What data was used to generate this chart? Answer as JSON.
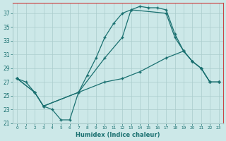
{
  "xlabel": "Humidex (Indice chaleur)",
  "xlim": [
    -0.5,
    23.5
  ],
  "ylim": [
    21,
    38.5
  ],
  "yticks": [
    21,
    23,
    25,
    27,
    29,
    31,
    33,
    35,
    37
  ],
  "xticks": [
    0,
    1,
    2,
    3,
    4,
    5,
    6,
    7,
    8,
    9,
    10,
    11,
    12,
    13,
    14,
    15,
    16,
    17,
    18,
    19,
    20,
    21,
    22,
    23
  ],
  "bg_color": "#cce8e8",
  "grid_color": "#aacccc",
  "line_color": "#1a7070",
  "curve1_x": [
    0,
    1,
    2,
    3,
    4,
    5,
    6,
    7,
    8,
    9,
    10,
    11,
    12,
    13,
    14,
    15,
    16,
    17,
    18,
    19,
    20,
    21,
    22,
    23
  ],
  "curve1_y": [
    27.5,
    27.0,
    25.5,
    23.5,
    23.0,
    21.5,
    21.5,
    25.5,
    28.0,
    30.5,
    33.5,
    35.5,
    37.0,
    37.5,
    38.0,
    37.8,
    37.8,
    37.5,
    34.0,
    31.5,
    30.0,
    29.0,
    27.0,
    27.0
  ],
  "curve2_x": [
    0,
    2,
    3,
    7,
    10,
    12,
    13,
    17,
    18,
    19,
    20,
    21,
    22,
    23
  ],
  "curve2_y": [
    27.5,
    25.5,
    23.5,
    25.5,
    30.5,
    33.5,
    37.5,
    37.0,
    33.5,
    31.5,
    30.0,
    29.0,
    27.0,
    27.0
  ],
  "curve3_x": [
    0,
    2,
    3,
    7,
    10,
    12,
    14,
    17,
    19,
    20,
    21,
    22,
    23
  ],
  "curve3_y": [
    27.5,
    25.5,
    23.5,
    25.5,
    27.0,
    27.5,
    28.5,
    30.5,
    31.5,
    30.0,
    29.0,
    27.0,
    27.0
  ]
}
